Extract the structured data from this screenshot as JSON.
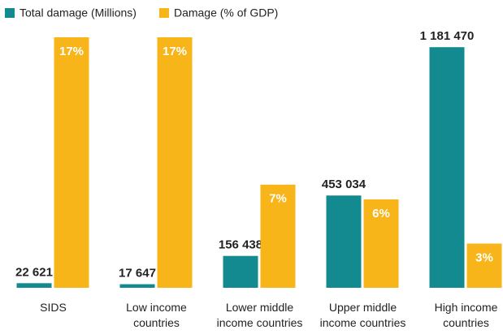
{
  "chart_data": {
    "type": "bar",
    "categories": [
      "SIDS",
      "Low income countries",
      "Lower middle income countries",
      "Upper middle income countries",
      "High income countries"
    ],
    "series": [
      {
        "name": "Total damage (Millions)",
        "color": "#138a8f",
        "values": [
          22621,
          17647,
          156438,
          453034,
          1181470
        ],
        "value_labels": [
          "22 621",
          "17 647",
          "156 438",
          "453 034",
          "1 181 470"
        ]
      },
      {
        "name": "Damage (% of GDP)",
        "color": "#f7b519",
        "axis": "y2",
        "values": [
          17,
          17,
          7,
          6,
          3
        ],
        "value_labels": [
          "17%",
          "17%",
          "7%",
          "6%",
          "3%"
        ]
      }
    ],
    "ylim": [
      0,
      1230000
    ],
    "y2lim": [
      0,
      17
    ],
    "legend": "top-left"
  }
}
